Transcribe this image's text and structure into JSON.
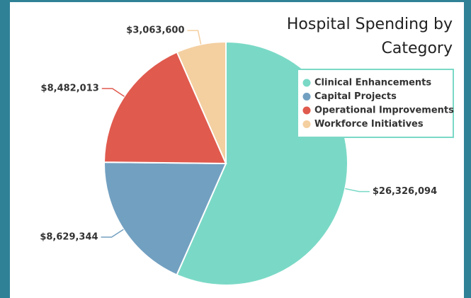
{
  "chart_data": {
    "type": "pie",
    "title": "Hospital Spending by Category",
    "categories": [
      "Clinical Enhancements",
      "Capital Projects",
      "Operational Improvements",
      "Workforce Initiatives"
    ],
    "values": [
      26326094,
      8629344,
      8482013,
      3063600
    ],
    "value_labels": [
      "$26,326,094",
      "$8,629,344",
      "$8,482,013",
      "$3,063,600"
    ],
    "colors": [
      "#7ad9c6",
      "#72a0c1",
      "#e05a4e",
      "#f4cfa0"
    ],
    "legend": "upper right"
  }
}
